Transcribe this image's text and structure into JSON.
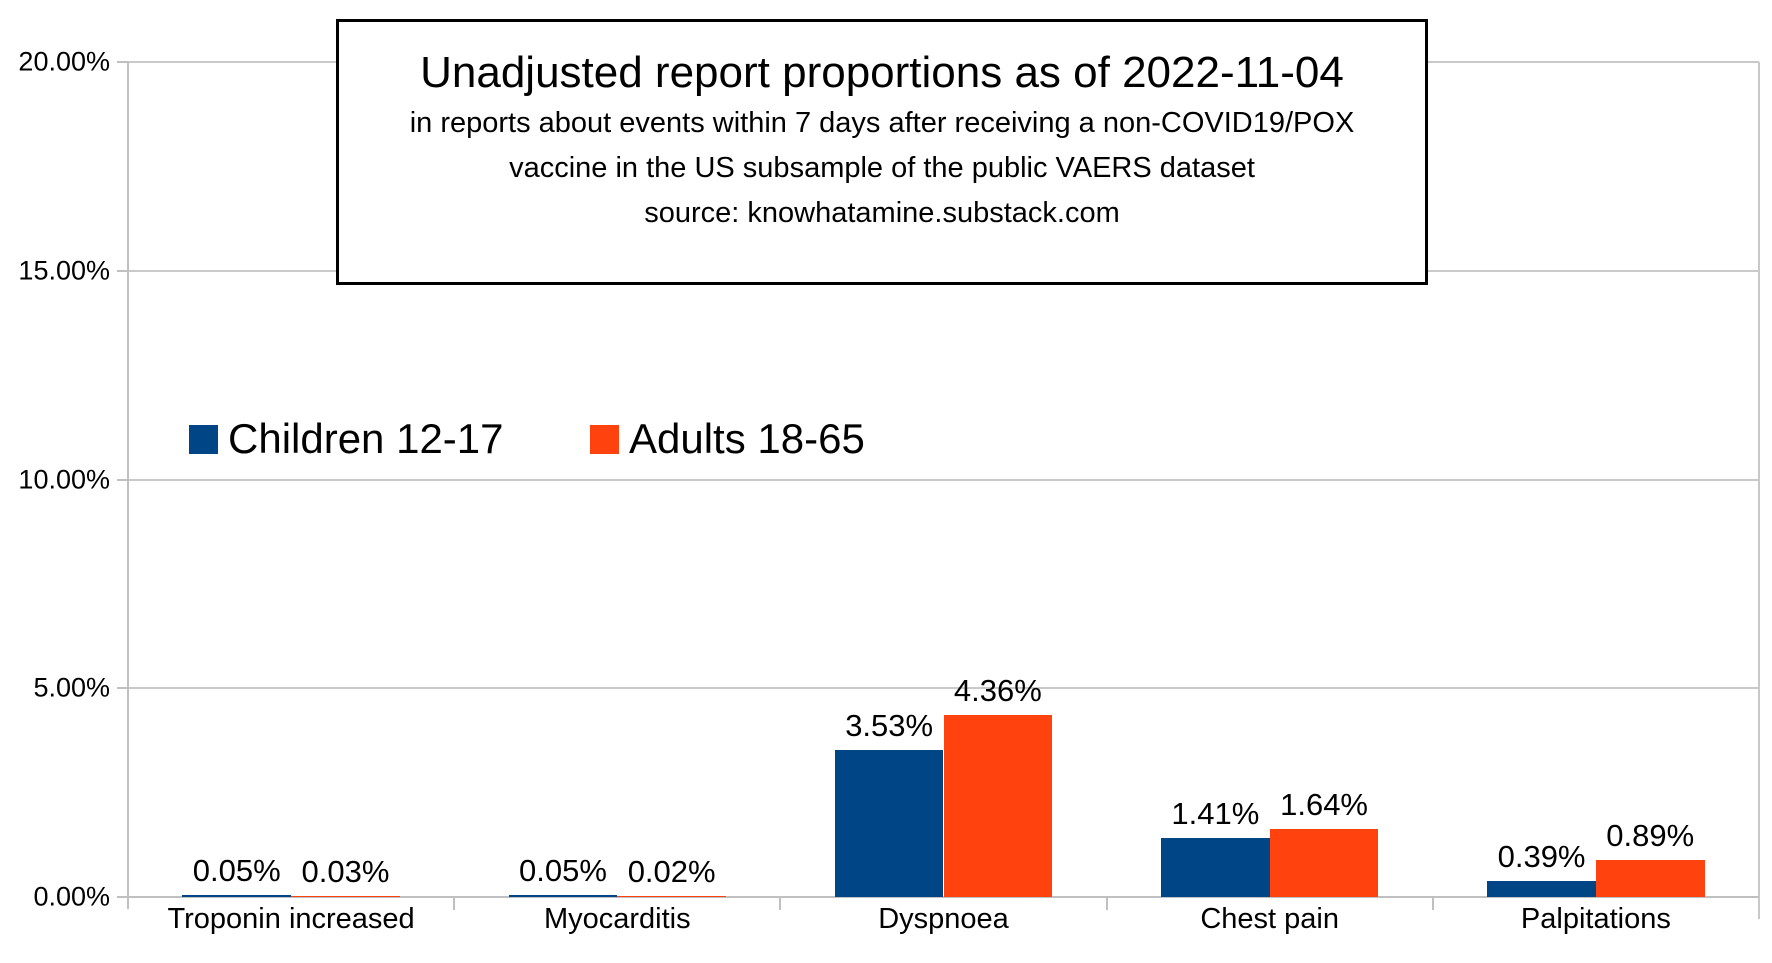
{
  "title_box": {
    "title": "Unadjusted report proportions as of 2022-11-04",
    "subtitle_line1": "in reports about events within 7 days after receiving a non-COVID19/POX",
    "subtitle_line2": "vaccine in the US subsample of the public VAERS dataset",
    "subtitle_line3": "source: knowhatamine.substack.com"
  },
  "legend": {
    "items": [
      {
        "label": "Children 12-17",
        "color": "#004586"
      },
      {
        "label": "Adults 18-65",
        "color": "#FF420E"
      }
    ]
  },
  "chart_data": {
    "type": "bar",
    "title": "Unadjusted report proportions as of 2022-11-04",
    "categories": [
      "Troponin increased",
      "Myocarditis",
      "Dyspnoea",
      "Chest pain",
      "Palpitations"
    ],
    "series": [
      {
        "name": "Children 12-17",
        "color": "#004586",
        "values": [
          0.05,
          0.05,
          3.53,
          1.41,
          0.39
        ],
        "data_labels": [
          "0.05%",
          "0.05%",
          "3.53%",
          "1.41%",
          "0.39%"
        ]
      },
      {
        "name": "Adults 18-65",
        "color": "#FF420E",
        "values": [
          0.03,
          0.02,
          4.36,
          1.64,
          0.89
        ],
        "data_labels": [
          "0.03%",
          "0.02%",
          "4.36%",
          "1.64%",
          "0.89%"
        ]
      }
    ],
    "y_axis": {
      "min": 0,
      "max": 20,
      "step": 5,
      "ticks": [
        {
          "value": 20,
          "label": "20.00%"
        },
        {
          "value": 15,
          "label": "15.00%"
        },
        {
          "value": 10,
          "label": "10.00%"
        },
        {
          "value": 5,
          "label": "5.00%"
        },
        {
          "value": 0,
          "label": "0.00%"
        }
      ],
      "unit": "percent"
    },
    "grid": true,
    "legend_position": "inside-top-left"
  }
}
